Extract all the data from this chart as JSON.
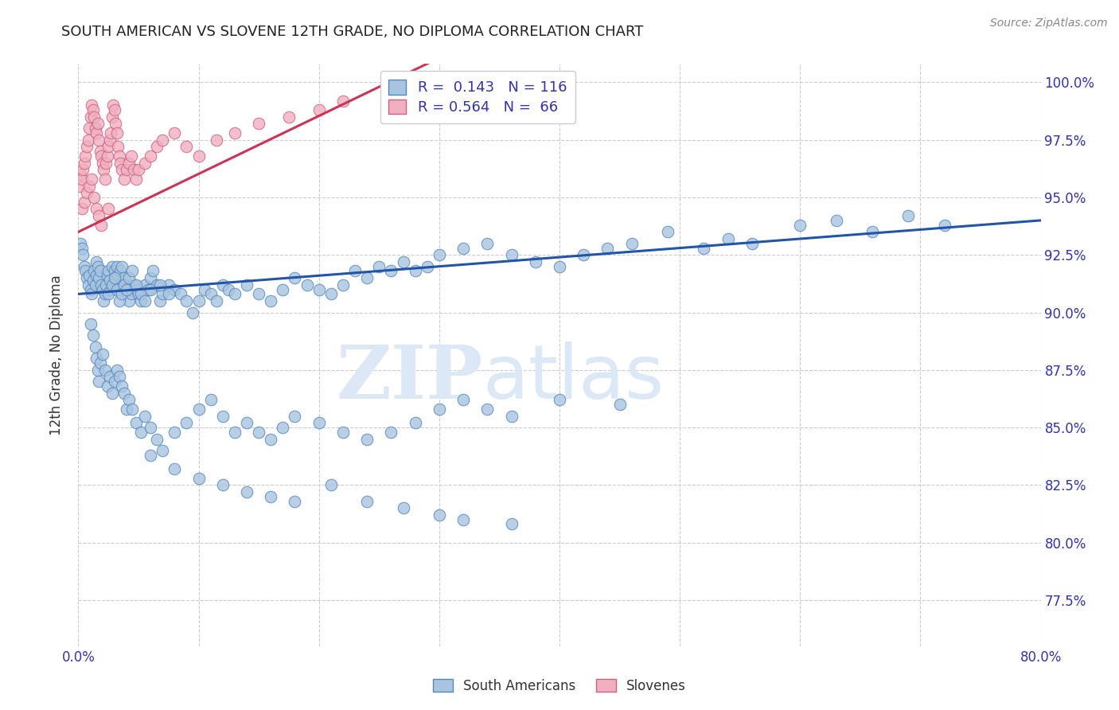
{
  "title": "SOUTH AMERICAN VS SLOVENE 12TH GRADE, NO DIPLOMA CORRELATION CHART",
  "source": "Source: ZipAtlas.com",
  "ylabel": "12th Grade, No Diploma",
  "xlim": [
    0.0,
    0.8
  ],
  "ylim": [
    0.755,
    1.008
  ],
  "sa_color": "#a8c4e0",
  "sa_edge_color": "#5588bb",
  "sl_color": "#f0b0c0",
  "sl_edge_color": "#d06080",
  "sa_line_color": "#2255aa",
  "sl_line_color": "#cc3355",
  "watermark_color": "#dce8f5",
  "sa_line_x0": 0.0,
  "sa_line_y0": 0.908,
  "sa_line_x1": 0.8,
  "sa_line_y1": 0.94,
  "sl_line_x0": 0.0,
  "sl_line_y0": 0.935,
  "sl_line_x1": 0.25,
  "sl_line_y1": 0.998,
  "ytick_positions": [
    0.775,
    0.8,
    0.825,
    0.85,
    0.875,
    0.9,
    0.925,
    0.95,
    0.975,
    1.0
  ],
  "ytick_labels": [
    "77.5%",
    "80.0%",
    "82.5%",
    "85.0%",
    "87.5%",
    "90.0%",
    "92.5%",
    "95.0%",
    "97.5%",
    "100.0%"
  ],
  "sa_points_x": [
    0.002,
    0.003,
    0.004,
    0.005,
    0.006,
    0.007,
    0.008,
    0.009,
    0.01,
    0.011,
    0.012,
    0.013,
    0.014,
    0.015,
    0.015,
    0.016,
    0.017,
    0.018,
    0.019,
    0.02,
    0.021,
    0.022,
    0.023,
    0.024,
    0.025,
    0.026,
    0.027,
    0.028,
    0.03,
    0.031,
    0.032,
    0.033,
    0.034,
    0.035,
    0.036,
    0.038,
    0.04,
    0.042,
    0.044,
    0.046,
    0.048,
    0.05,
    0.052,
    0.055,
    0.058,
    0.06,
    0.062,
    0.065,
    0.068,
    0.07,
    0.075,
    0.08,
    0.085,
    0.09,
    0.095,
    0.1,
    0.105,
    0.11,
    0.115,
    0.12,
    0.125,
    0.13,
    0.14,
    0.15,
    0.16,
    0.17,
    0.18,
    0.19,
    0.2,
    0.21,
    0.22,
    0.23,
    0.24,
    0.25,
    0.26,
    0.27,
    0.28,
    0.29,
    0.3,
    0.32,
    0.34,
    0.36,
    0.38,
    0.4,
    0.42,
    0.44,
    0.46,
    0.49,
    0.52,
    0.54,
    0.56,
    0.6,
    0.63,
    0.66,
    0.69,
    0.72,
    0.025,
    0.028,
    0.03,
    0.032,
    0.034,
    0.036,
    0.038,
    0.04,
    0.042,
    0.045,
    0.048,
    0.052,
    0.055,
    0.06,
    0.068,
    0.075
  ],
  "sa_points_y": [
    0.93,
    0.928,
    0.925,
    0.92,
    0.918,
    0.915,
    0.912,
    0.916,
    0.91,
    0.908,
    0.914,
    0.918,
    0.912,
    0.916,
    0.922,
    0.92,
    0.915,
    0.918,
    0.912,
    0.91,
    0.905,
    0.908,
    0.912,
    0.916,
    0.918,
    0.914,
    0.91,
    0.92,
    0.918,
    0.915,
    0.92,
    0.916,
    0.912,
    0.918,
    0.92,
    0.915,
    0.91,
    0.905,
    0.908,
    0.912,
    0.91,
    0.908,
    0.905,
    0.912,
    0.91,
    0.915,
    0.918,
    0.912,
    0.905,
    0.908,
    0.912,
    0.91,
    0.908,
    0.905,
    0.9,
    0.905,
    0.91,
    0.908,
    0.905,
    0.912,
    0.91,
    0.908,
    0.912,
    0.908,
    0.905,
    0.91,
    0.915,
    0.912,
    0.91,
    0.908,
    0.912,
    0.918,
    0.915,
    0.92,
    0.918,
    0.922,
    0.918,
    0.92,
    0.925,
    0.928,
    0.93,
    0.925,
    0.922,
    0.92,
    0.925,
    0.928,
    0.93,
    0.935,
    0.928,
    0.932,
    0.93,
    0.938,
    0.94,
    0.935,
    0.942,
    0.938,
    0.908,
    0.912,
    0.915,
    0.91,
    0.905,
    0.908,
    0.912,
    0.91,
    0.915,
    0.918,
    0.912,
    0.908,
    0.905,
    0.91,
    0.912,
    0.908
  ],
  "sa_low_x": [
    0.01,
    0.012,
    0.014,
    0.015,
    0.016,
    0.017,
    0.018,
    0.02,
    0.022,
    0.024,
    0.026,
    0.028,
    0.03,
    0.032,
    0.034,
    0.036,
    0.038,
    0.04,
    0.042,
    0.045,
    0.048,
    0.052,
    0.055,
    0.06,
    0.065,
    0.07,
    0.08,
    0.09,
    0.1,
    0.11,
    0.12,
    0.13,
    0.14,
    0.15,
    0.16,
    0.17,
    0.18,
    0.2,
    0.22,
    0.24,
    0.26,
    0.28,
    0.3,
    0.32,
    0.34,
    0.36,
    0.4,
    0.45
  ],
  "sa_low_y": [
    0.895,
    0.89,
    0.885,
    0.88,
    0.875,
    0.87,
    0.878,
    0.882,
    0.875,
    0.868,
    0.872,
    0.865,
    0.87,
    0.875,
    0.872,
    0.868,
    0.865,
    0.858,
    0.862,
    0.858,
    0.852,
    0.848,
    0.855,
    0.85,
    0.845,
    0.84,
    0.848,
    0.852,
    0.858,
    0.862,
    0.855,
    0.848,
    0.852,
    0.848,
    0.845,
    0.85,
    0.855,
    0.852,
    0.848,
    0.845,
    0.848,
    0.852,
    0.858,
    0.862,
    0.858,
    0.855,
    0.862,
    0.86
  ],
  "sa_vlow_x": [
    0.06,
    0.08,
    0.1,
    0.12,
    0.14,
    0.16,
    0.18,
    0.21,
    0.24,
    0.27,
    0.3,
    0.32,
    0.36
  ],
  "sa_vlow_y": [
    0.838,
    0.832,
    0.828,
    0.825,
    0.822,
    0.82,
    0.818,
    0.825,
    0.818,
    0.815,
    0.812,
    0.81,
    0.808
  ],
  "sl_points_x": [
    0.001,
    0.002,
    0.003,
    0.004,
    0.005,
    0.006,
    0.007,
    0.008,
    0.009,
    0.01,
    0.011,
    0.012,
    0.013,
    0.014,
    0.015,
    0.016,
    0.017,
    0.018,
    0.019,
    0.02,
    0.021,
    0.022,
    0.023,
    0.024,
    0.025,
    0.026,
    0.027,
    0.028,
    0.029,
    0.03,
    0.031,
    0.032,
    0.033,
    0.034,
    0.035,
    0.036,
    0.038,
    0.04,
    0.042,
    0.044,
    0.046,
    0.048,
    0.05,
    0.055,
    0.06,
    0.065,
    0.07,
    0.08,
    0.09,
    0.1,
    0.115,
    0.13,
    0.15,
    0.175,
    0.2,
    0.22,
    0.003,
    0.005,
    0.007,
    0.009,
    0.011,
    0.013,
    0.015,
    0.017,
    0.019,
    0.025
  ],
  "sl_points_y": [
    0.955,
    0.96,
    0.958,
    0.962,
    0.965,
    0.968,
    0.972,
    0.975,
    0.98,
    0.985,
    0.99,
    0.988,
    0.985,
    0.98,
    0.978,
    0.982,
    0.975,
    0.97,
    0.968,
    0.965,
    0.962,
    0.958,
    0.965,
    0.968,
    0.972,
    0.975,
    0.978,
    0.985,
    0.99,
    0.988,
    0.982,
    0.978,
    0.972,
    0.968,
    0.965,
    0.962,
    0.958,
    0.962,
    0.965,
    0.968,
    0.962,
    0.958,
    0.962,
    0.965,
    0.968,
    0.972,
    0.975,
    0.978,
    0.972,
    0.968,
    0.975,
    0.978,
    0.982,
    0.985,
    0.988,
    0.992,
    0.945,
    0.948,
    0.952,
    0.955,
    0.958,
    0.95,
    0.945,
    0.942,
    0.938,
    0.945
  ]
}
